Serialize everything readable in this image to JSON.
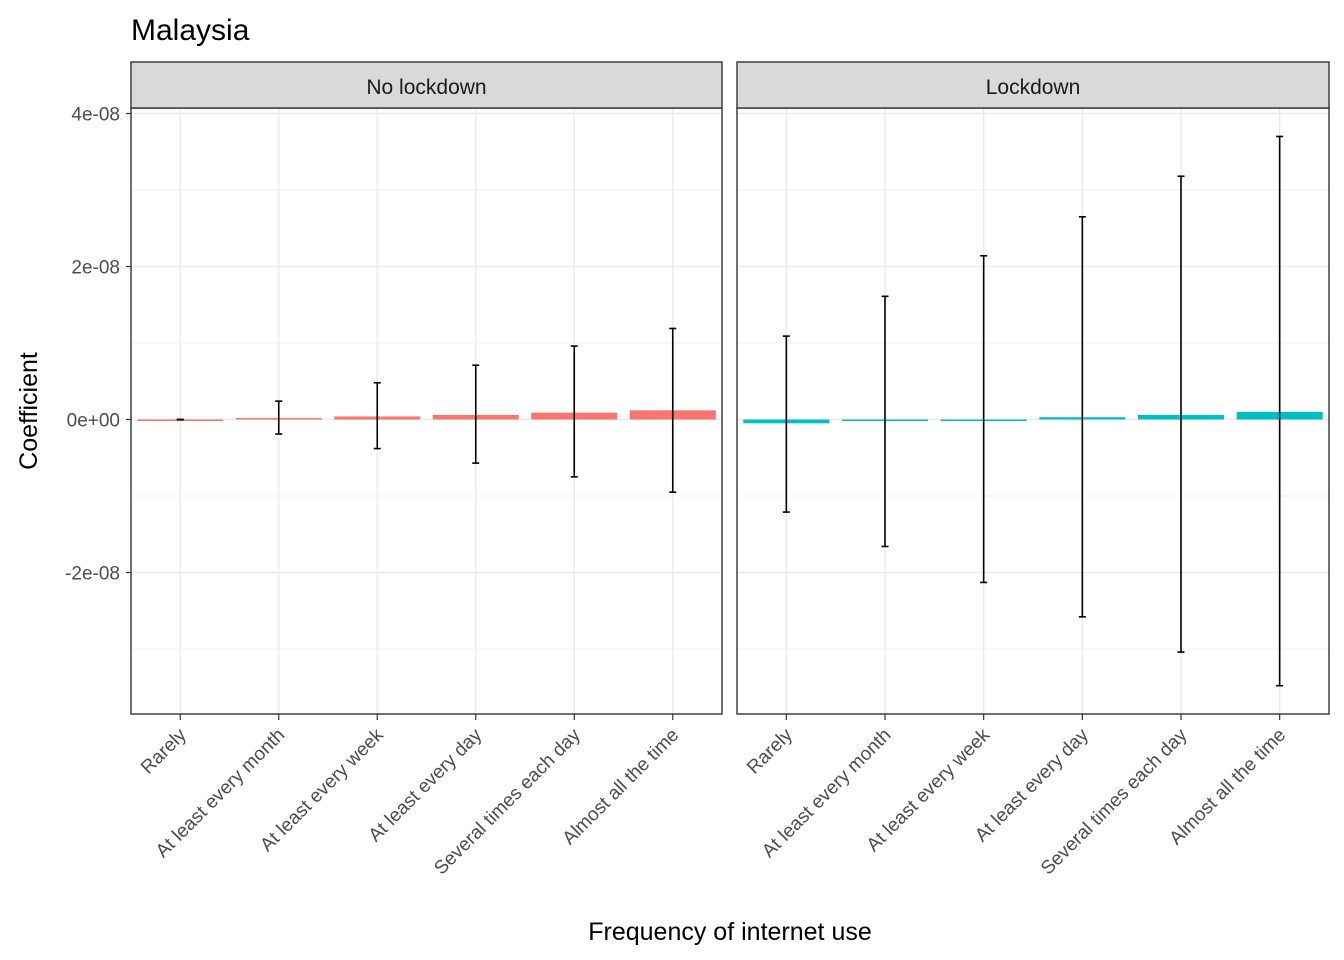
{
  "chart_data": {
    "type": "bar",
    "title": "Malaysia",
    "xlabel": "Frequency of internet use",
    "ylabel": "Coefficient",
    "categories": [
      "Rarely",
      "At least every month",
      "At least every week",
      "At least every day",
      "Several times each day",
      "Almost all the time"
    ],
    "y_ticks": [
      {
        "value": 4e-08,
        "label": "4e-08"
      },
      {
        "value": 2e-08,
        "label": "2e-08"
      },
      {
        "value": 0,
        "label": "0e+00"
      },
      {
        "value": -2e-08,
        "label": "-2e-08"
      }
    ],
    "ylim": [
      -3.9e-08,
      4.05e-08
    ],
    "grid": true,
    "legend": "none",
    "panels": [
      {
        "name": "No lockdown",
        "color": "#F8766D",
        "values": [
          0,
          2e-10,
          4e-10,
          6e-10,
          9e-10,
          1.2e-09
        ],
        "ci_low": [
          0,
          -1.9e-09,
          -3.8e-09,
          -5.7e-09,
          -7.5e-09,
          -9.5e-09
        ],
        "ci_high": [
          0,
          2.4e-09,
          4.8e-09,
          7.1e-09,
          9.6e-09,
          1.19e-08
        ]
      },
      {
        "name": "Lockdown",
        "color": "#00BFC4",
        "values": [
          -5e-10,
          -2e-10,
          0,
          3e-10,
          6e-10,
          1e-09
        ],
        "ci_low": [
          -1.21e-08,
          -1.66e-08,
          -2.13e-08,
          -2.58e-08,
          -3.04e-08,
          -3.48e-08
        ],
        "ci_high": [
          1.09e-08,
          1.61e-08,
          2.14e-08,
          2.65e-08,
          3.18e-08,
          3.7e-08
        ]
      }
    ]
  }
}
